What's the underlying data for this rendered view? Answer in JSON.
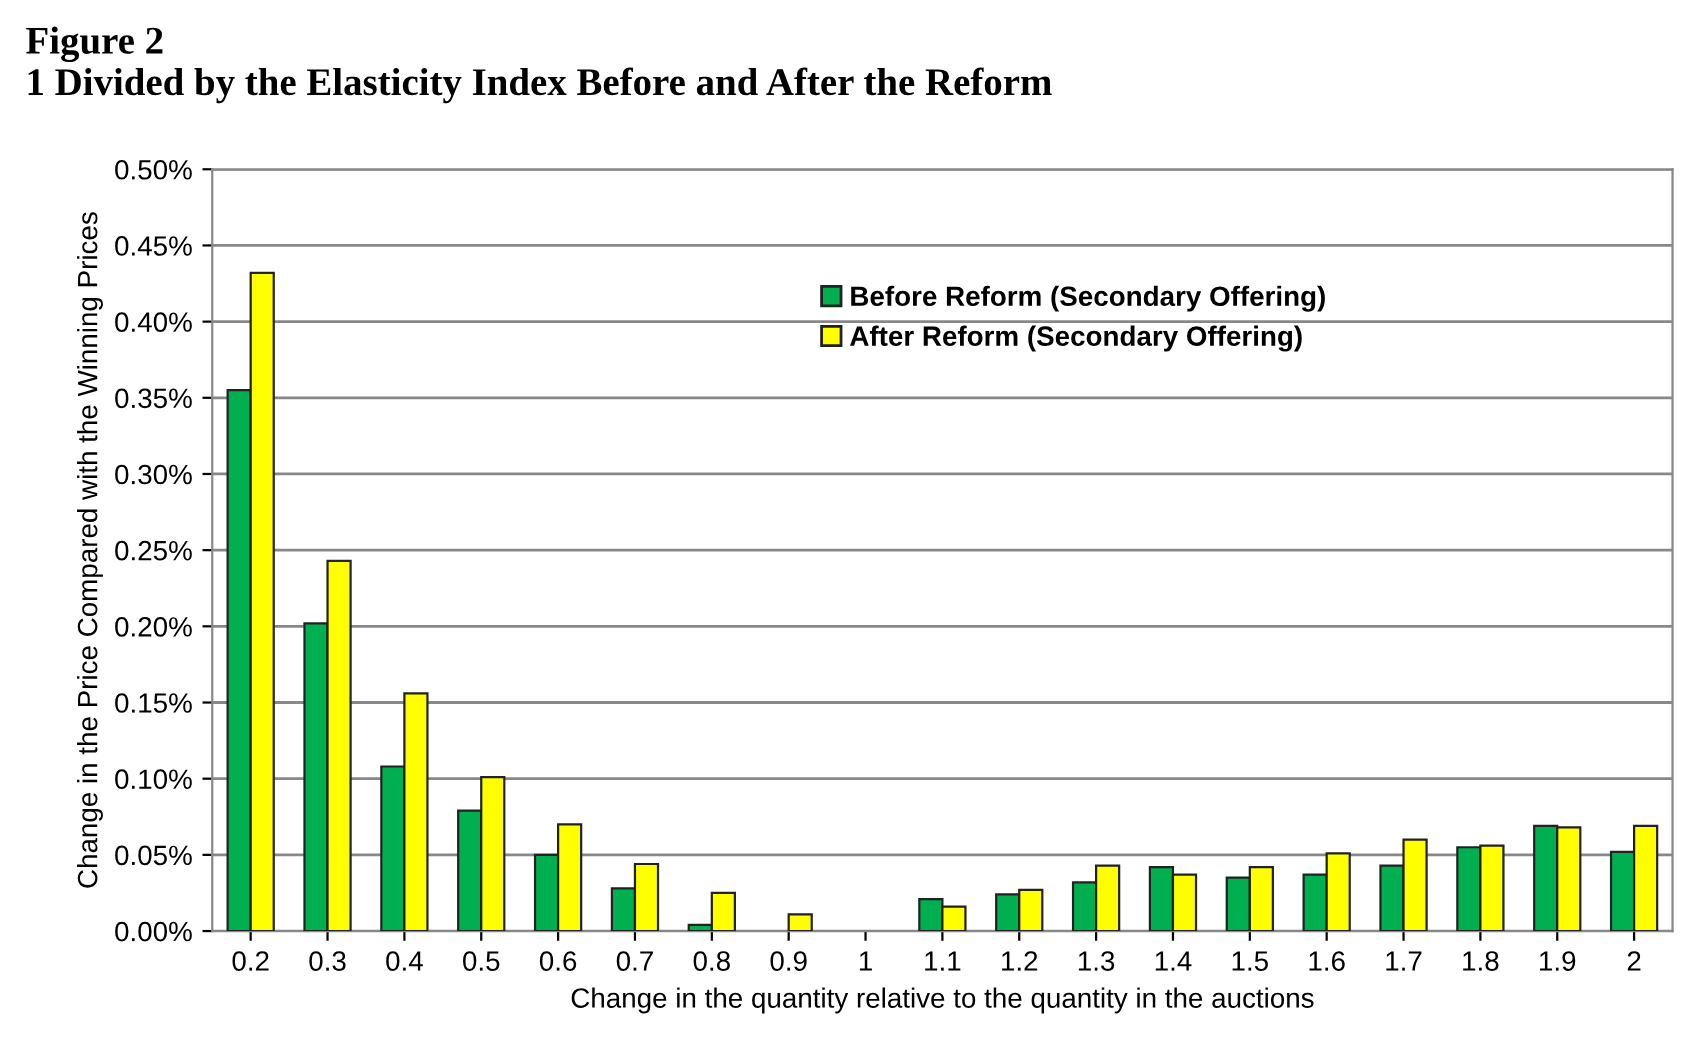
{
  "chart_data": {
    "type": "bar",
    "title": "Figure 2\n1 Divided by the Elasticity Index Before and After the Reform",
    "xlabel": "Change in the quantity relative to the quantity in the auctions",
    "ylabel": "Change in the Price Compared with the Winning Prices",
    "categories": [
      "0.2",
      "0.3",
      "0.4",
      "0.5",
      "0.6",
      "0.7",
      "0.8",
      "0.9",
      "1",
      "1.1",
      "1.2",
      "1.3",
      "1.4",
      "1.5",
      "1.6",
      "1.7",
      "1.8",
      "1.9",
      "2"
    ],
    "series": [
      {
        "name": "Before Reform (Secondary Offering)",
        "color": "#00b050",
        "values": [
          0.355,
          0.202,
          0.108,
          0.079,
          0.05,
          0.028,
          0.004,
          null,
          null,
          0.021,
          0.024,
          0.032,
          0.042,
          0.035,
          0.037,
          0.043,
          0.055,
          0.069,
          0.052
        ]
      },
      {
        "name": "After Reform (Secondary Offering)",
        "color": "#ffff00",
        "values": [
          0.432,
          0.243,
          0.156,
          0.101,
          0.07,
          0.044,
          0.025,
          0.011,
          null,
          0.016,
          0.027,
          0.043,
          0.037,
          0.042,
          0.051,
          0.06,
          0.056,
          0.068,
          0.069
        ]
      }
    ],
    "ylim": [
      0,
      0.5
    ],
    "yticks": [
      {
        "value": 0,
        "label": "0.00%"
      },
      {
        "value": 0.05,
        "label": "0.05%"
      },
      {
        "value": 0.1,
        "label": "0.10%"
      },
      {
        "value": 0.15,
        "label": "0.15%"
      },
      {
        "value": 0.2,
        "label": "0.20%"
      },
      {
        "value": 0.25,
        "label": "0.25%"
      },
      {
        "value": 0.3,
        "label": "0.30%"
      },
      {
        "value": 0.35,
        "label": "0.35%"
      },
      {
        "value": 0.4,
        "label": "0.40%"
      },
      {
        "value": 0.45,
        "label": "0.45%"
      },
      {
        "value": 0.5,
        "label": "0.50%"
      }
    ],
    "grid": "y",
    "legend": "top right"
  }
}
